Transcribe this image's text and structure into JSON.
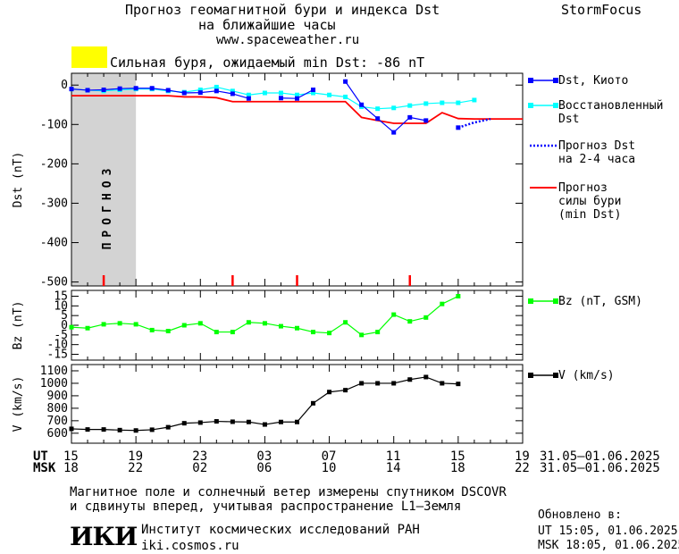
{
  "header": {
    "title_line1": "Прогноз геомагнитной бури и индекса Dst",
    "title_line2": "на ближайшие часы",
    "url": "www.spaceweather.ru",
    "brand": "StormFocus",
    "storm_text": "Сильная буря, ожидаемый min Dst: -86 nT",
    "storm_color": "#ffff00"
  },
  "colors": {
    "dst": "#0000ff",
    "restored": "#00ffff",
    "forecast": "#ff0000",
    "bz": "#00ff00",
    "v": "#000000",
    "forecast_bg": "#d3d3d3"
  },
  "chart_data": [
    {
      "type": "line",
      "id": "dst",
      "ylabel": "Dst (nT)",
      "ylim": [
        -510,
        30
      ],
      "yticks": [
        0,
        -100,
        -200,
        -300,
        -400,
        -500
      ],
      "forecast_band_label": "ПРОГНОЗ",
      "forecast_band_x": [
        15,
        19
      ],
      "series": [
        {
          "name": "Dst, Киото",
          "x": [
            15,
            16,
            17,
            18,
            19,
            20,
            21,
            22,
            23,
            24,
            25,
            26,
            27,
            28,
            29,
            30,
            31,
            32,
            33,
            34,
            35,
            36,
            37,
            38,
            39
          ],
          "y": [
            -10,
            -13,
            -12,
            -9,
            -8,
            -8,
            -13,
            -20,
            -19,
            -15,
            -22,
            -34,
            null,
            -33,
            -34,
            -12,
            null,
            9,
            -50,
            -85,
            -120,
            -82,
            -90,
            null,
            -108
          ]
        },
        {
          "name": "Восстановленный Dst",
          "x": [
            15,
            16,
            17,
            18,
            19,
            20,
            21,
            22,
            23,
            24,
            25,
            26,
            27,
            28,
            29,
            30,
            31,
            32,
            33,
            34,
            35,
            36,
            37,
            38,
            39,
            40
          ],
          "y": [
            -10,
            -13,
            -15,
            -12,
            -10,
            -10,
            -15,
            -18,
            -12,
            -5,
            -15,
            -25,
            -20,
            -20,
            -25,
            -20,
            -25,
            -30,
            -55,
            -60,
            -58,
            -52,
            -47,
            -45,
            -45,
            -38
          ]
        },
        {
          "name": "Прогноз Dst на 2-4 часа",
          "x": [
            39,
            40,
            41
          ],
          "y": [
            -108,
            -95,
            -86
          ]
        },
        {
          "name": "Прогноз силы бури (min Dst)",
          "x": [
            15,
            16,
            17,
            18,
            19,
            20,
            21,
            22,
            23,
            24,
            25,
            26,
            27,
            28,
            29,
            30,
            31,
            32,
            33,
            34,
            35,
            36,
            37,
            38,
            39,
            40,
            41,
            42,
            43
          ],
          "y": [
            -27,
            -27,
            -27,
            -27,
            -27,
            -27,
            -27,
            -30,
            -30,
            -32,
            -42,
            -42,
            -42,
            -42,
            -42,
            -42,
            -42,
            -42,
            -82,
            -90,
            -97,
            -97,
            -97,
            -70,
            -85,
            -86,
            -86,
            -86,
            -86
          ]
        }
      ],
      "markers_x": [
        17,
        25,
        29,
        36
      ]
    },
    {
      "type": "line",
      "id": "bz",
      "ylabel": "Bz (nT)",
      "ylim": [
        -18,
        18
      ],
      "yticks": [
        15,
        10,
        5,
        0,
        -5,
        -10,
        -15
      ],
      "series": [
        {
          "name": "Bz (nT, GSM)",
          "x": [
            15,
            16,
            17,
            18,
            19,
            20,
            21,
            22,
            23,
            24,
            25,
            26,
            27,
            28,
            29,
            30,
            31,
            32,
            33,
            34,
            35,
            36,
            37,
            38,
            39,
            40
          ],
          "y": [
            -1,
            -1.5,
            0.5,
            1,
            0.5,
            -2.5,
            -3,
            0,
            1,
            -3.5,
            -3.5,
            1.5,
            1,
            -0.5,
            -1.5,
            -3.5,
            -4,
            1.5,
            -5,
            -3.5,
            5.5,
            2,
            4,
            11,
            15,
            null
          ]
        }
      ]
    },
    {
      "type": "line",
      "id": "v",
      "ylabel": "V (km/s)",
      "ylim": [
        520,
        1150
      ],
      "yticks": [
        1100,
        1000,
        900,
        800,
        700,
        600
      ],
      "series": [
        {
          "name": "V (km/s)",
          "x": [
            15,
            16,
            17,
            18,
            19,
            20,
            21,
            22,
            23,
            24,
            25,
            26,
            27,
            28,
            29,
            30,
            31,
            32,
            33,
            34,
            35,
            36,
            37,
            38,
            39
          ],
          "y": [
            635,
            630,
            630,
            625,
            622,
            628,
            648,
            680,
            685,
            695,
            692,
            690,
            670,
            690,
            690,
            840,
            930,
            945,
            1000,
            1000,
            1000,
            1030,
            1050,
            1000,
            995
          ]
        }
      ]
    }
  ],
  "axis": {
    "ut_label": "UT",
    "msk_label": "MSK",
    "ut_ticks": [
      "15",
      "19",
      "23",
      "03",
      "07",
      "11",
      "15",
      "19"
    ],
    "msk_ticks": [
      "18",
      "22",
      "02",
      "06",
      "10",
      "14",
      "18",
      "22"
    ],
    "date_range_ut": "31.05–01.06.2025",
    "date_range_msk": "31.05–01.06.2025"
  },
  "footer": {
    "line1": "Магнитное поле и солнечный ветер измерены спутником DSCOVR",
    "line2": "и сдвинуты вперед, учитывая распространение L1–Земля",
    "logo": "ИКИ",
    "institute": "Институт космических исследований РАН",
    "site": "iki.cosmos.ru",
    "updated_label": "Обновлено в:",
    "updated_ut": "UT   15:05, 01.06.2025",
    "updated_msk": "MSK 18:05, 01.06.2025"
  }
}
